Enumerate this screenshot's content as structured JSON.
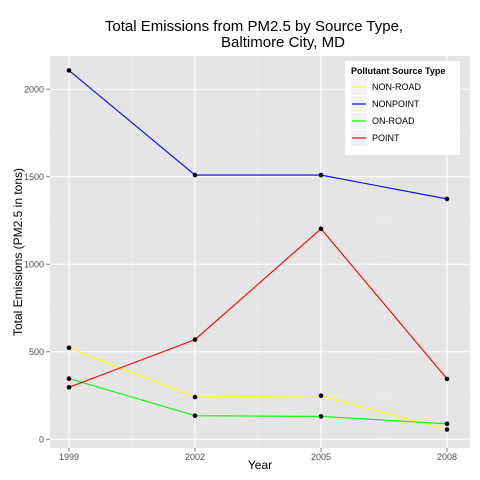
{
  "chart_data": {
    "type": "line",
    "title": [
      "Total Emissions from PM2.5 by Source Type,",
      "Baltimore City, MD"
    ],
    "xlabel": "Year",
    "ylabel": "Total Emissions (PM2.5 in tons)",
    "x": [
      1999,
      2002,
      2005,
      2008
    ],
    "x_ticks": [
      "1999",
      "2002",
      "2005",
      "2008"
    ],
    "y_ticks": [
      0,
      500,
      1000,
      1500,
      2000
    ],
    "ylim": [
      -50,
      2190
    ],
    "grid": true,
    "legend": {
      "title": "Pollutant Source Type",
      "placement": "top-right",
      "entries": [
        "NON-ROAD",
        "NONPOINT",
        "ON-ROAD",
        "POINT"
      ]
    },
    "series": [
      {
        "name": "NON-ROAD",
        "color": "#ffff00",
        "values": [
          522.9,
          240.8,
          248.9,
          55.8
        ]
      },
      {
        "name": "NONPOINT",
        "color": "#0000ff",
        "values": [
          2107.6,
          1509.5,
          1509.5,
          1373.2
        ]
      },
      {
        "name": "ON-ROAD",
        "color": "#00ff00",
        "values": [
          346.8,
          134.3,
          130.4,
          88.3
        ]
      },
      {
        "name": "POINT",
        "color": "#ff0000",
        "values": [
          296.8,
          569.3,
          1202.5,
          344.98
        ]
      }
    ]
  }
}
